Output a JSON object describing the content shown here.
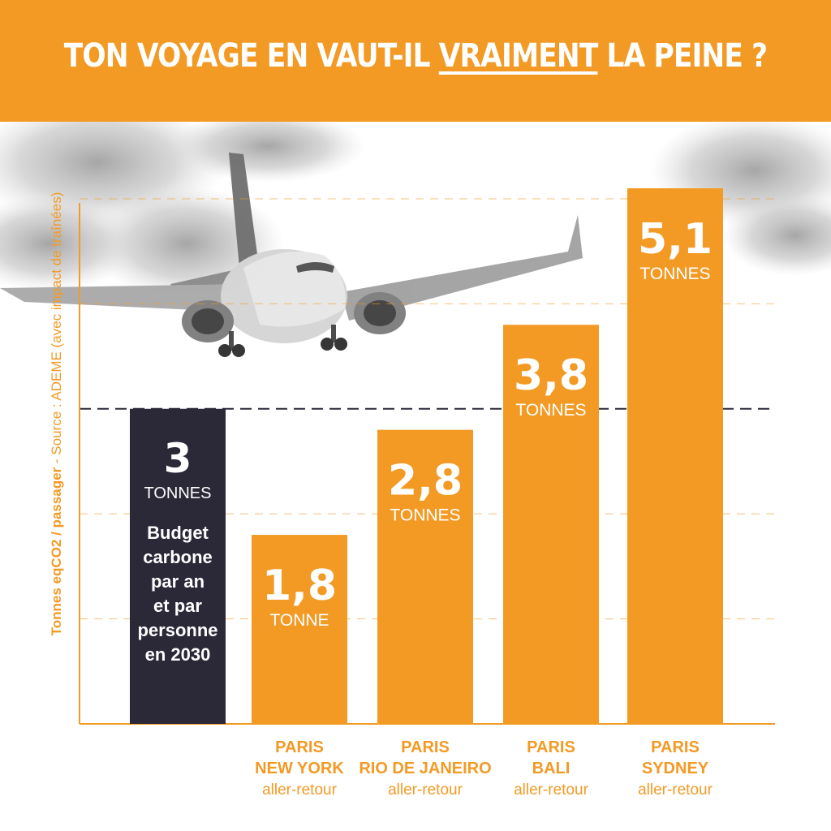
{
  "title": {
    "before": "TON VOYAGE EN VAUT-IL ",
    "underlined": "VRAIMENT",
    "after": " LA PEINE ?"
  },
  "y_axis": {
    "label_bold": "Tonnes eqCO2 / passager",
    "label_source": " - Source : ADEME (avec impact de traînées)"
  },
  "colors": {
    "orange": "#f39a25",
    "budget_bar": "#2b2838",
    "banner": "#f39a25"
  },
  "budget": {
    "value": 3,
    "value_label": "3",
    "unit": "TONNES",
    "lines": [
      "Budget",
      "carbone",
      "par an",
      "et par",
      "personne",
      "en 2030"
    ]
  },
  "chart_data": {
    "type": "bar",
    "ylabel": "Tonnes eqCO2 / passager - Source : ADEME (avec impact de traînées)",
    "ylim": [
      0,
      5.1
    ],
    "reference_line": 3,
    "grid": "dashed horizontal",
    "bars": [
      {
        "value": 1.8,
        "value_label": "1,8",
        "unit": "TONNE",
        "city": [
          "PARIS",
          "NEW YORK"
        ],
        "trip": "aller-retour"
      },
      {
        "value": 2.8,
        "value_label": "2,8",
        "unit": "TONNES",
        "city": [
          "PARIS",
          "RIO DE JANEIRO"
        ],
        "trip": "aller-retour"
      },
      {
        "value": 3.8,
        "value_label": "3,8",
        "unit": "TONNES",
        "city": [
          "PARIS",
          "BALI"
        ],
        "trip": "aller-retour"
      },
      {
        "value": 5.1,
        "value_label": "5,1",
        "unit": "TONNES",
        "city": [
          "PARIS",
          "SYDNEY"
        ],
        "trip": "aller-retour"
      }
    ]
  }
}
